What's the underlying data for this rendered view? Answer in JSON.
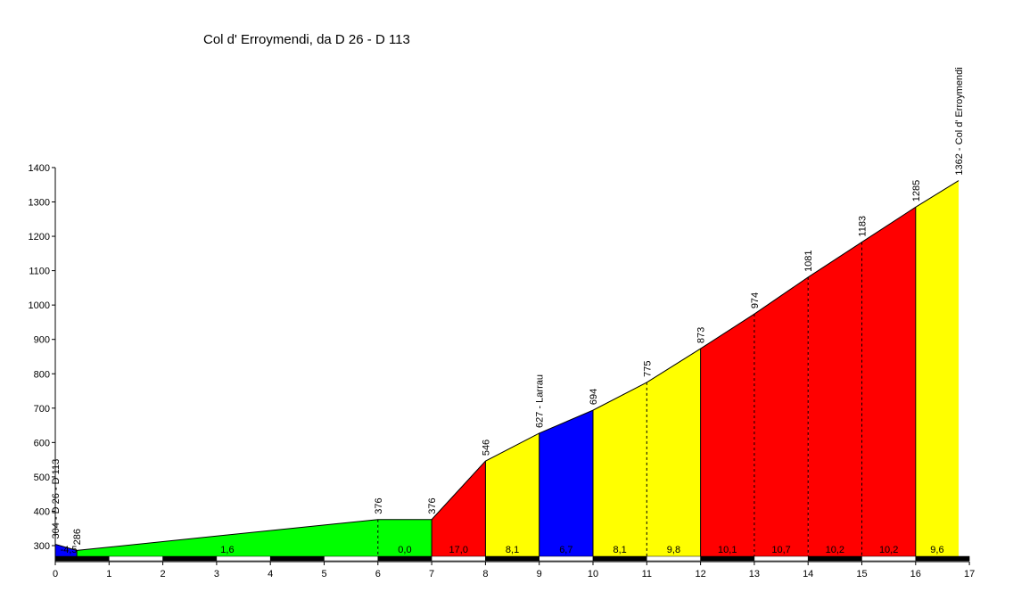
{
  "chart_data": {
    "type": "area",
    "title": "Col d' Erroymendi, da D 26 - D 113",
    "xlim": [
      0,
      17
    ],
    "ylim": [
      260,
      1400
    ],
    "x_ticks": [
      0,
      1,
      2,
      3,
      4,
      5,
      6,
      7,
      8,
      9,
      10,
      11,
      12,
      13,
      14,
      15,
      16,
      17
    ],
    "x_tick_labels": [
      "0",
      "1",
      "2",
      "3",
      "4",
      "5",
      "6",
      "7",
      "8",
      "9",
      "10",
      "11",
      "12",
      "13",
      "14",
      "15",
      "16",
      "17"
    ],
    "y_ticks": [
      300,
      400,
      500,
      600,
      700,
      800,
      900,
      1000,
      1100,
      1200,
      1300,
      1400
    ],
    "y_tick_labels": [
      "300",
      "400",
      "500",
      "600",
      "700",
      "800",
      "900",
      "1000",
      "1100",
      "1200",
      "1300",
      "1400"
    ],
    "colors": {
      "blue": "#0000ff",
      "green": "#00ff00",
      "red": "#ff0000",
      "yellow": "#ffff00"
    },
    "segments": [
      {
        "x0": 0,
        "x1": 0.4,
        "y0": 304,
        "y1": 286,
        "gradient": "-4,5",
        "color": "blue"
      },
      {
        "x0": 0.4,
        "x1": 6,
        "y0": 286,
        "y1": 376,
        "gradient": "1,6",
        "color": "green"
      },
      {
        "x0": 6,
        "x1": 7,
        "y0": 376,
        "y1": 376,
        "gradient": "0,0",
        "color": "green"
      },
      {
        "x0": 7,
        "x1": 8,
        "y0": 376,
        "y1": 546,
        "gradient": "17,0",
        "color": "red"
      },
      {
        "x0": 8,
        "x1": 9,
        "y0": 546,
        "y1": 627,
        "gradient": "8,1",
        "color": "yellow"
      },
      {
        "x0": 9,
        "x1": 10,
        "y0": 627,
        "y1": 694,
        "gradient": "6,7",
        "color": "blue"
      },
      {
        "x0": 10,
        "x1": 11,
        "y0": 694,
        "y1": 775,
        "gradient": "8,1",
        "color": "yellow"
      },
      {
        "x0": 11,
        "x1": 12,
        "y0": 775,
        "y1": 873,
        "gradient": "9,8",
        "color": "yellow"
      },
      {
        "x0": 12,
        "x1": 13,
        "y0": 873,
        "y1": 974,
        "gradient": "10,1",
        "color": "red"
      },
      {
        "x0": 13,
        "x1": 14,
        "y0": 974,
        "y1": 1081,
        "gradient": "10,7",
        "color": "red"
      },
      {
        "x0": 14,
        "x1": 15,
        "y0": 1081,
        "y1": 1183,
        "gradient": "10,2",
        "color": "red"
      },
      {
        "x0": 15,
        "x1": 16,
        "y0": 1183,
        "y1": 1285,
        "gradient": "10,2",
        "color": "red"
      },
      {
        "x0": 16,
        "x1": 16.8,
        "y0": 1285,
        "y1": 1362,
        "gradient": "9,6",
        "color": "yellow"
      }
    ],
    "elevation_labels": [
      {
        "x": 0,
        "y": 304,
        "text": "304 - D 26 - D 113"
      },
      {
        "x": 0.4,
        "y": 286,
        "text": "286"
      },
      {
        "x": 6,
        "y": 376,
        "text": "376"
      },
      {
        "x": 7,
        "y": 376,
        "text": "376"
      },
      {
        "x": 8,
        "y": 546,
        "text": "546"
      },
      {
        "x": 9,
        "y": 627,
        "text": "627 - Larrau"
      },
      {
        "x": 10,
        "y": 694,
        "text": "694"
      },
      {
        "x": 11,
        "y": 775,
        "text": "775"
      },
      {
        "x": 12,
        "y": 873,
        "text": "873"
      },
      {
        "x": 13,
        "y": 974,
        "text": "974"
      },
      {
        "x": 14,
        "y": 1081,
        "text": "1081"
      },
      {
        "x": 15,
        "y": 1183,
        "text": "1183"
      },
      {
        "x": 16,
        "y": 1285,
        "text": "1285"
      },
      {
        "x": 16.8,
        "y": 1362,
        "text": "1362 - Col d' Erroymendi"
      }
    ],
    "gradient_labels": [
      {
        "x": 0.25,
        "text": "-4,5"
      },
      {
        "x": 3.2,
        "text": "1,6"
      },
      {
        "x": 6.5,
        "text": "0,0"
      },
      {
        "x": 7.5,
        "text": "17,0"
      },
      {
        "x": 8.5,
        "text": "8,1"
      },
      {
        "x": 9.5,
        "text": "6,7"
      },
      {
        "x": 10.5,
        "text": "8,1"
      },
      {
        "x": 11.5,
        "text": "9,8"
      },
      {
        "x": 12.5,
        "text": "10,1"
      },
      {
        "x": 13.5,
        "text": "10,7"
      },
      {
        "x": 14.5,
        "text": "10,2"
      },
      {
        "x": 15.5,
        "text": "10,2"
      },
      {
        "x": 16.4,
        "text": "9,6"
      }
    ],
    "grid": false
  }
}
